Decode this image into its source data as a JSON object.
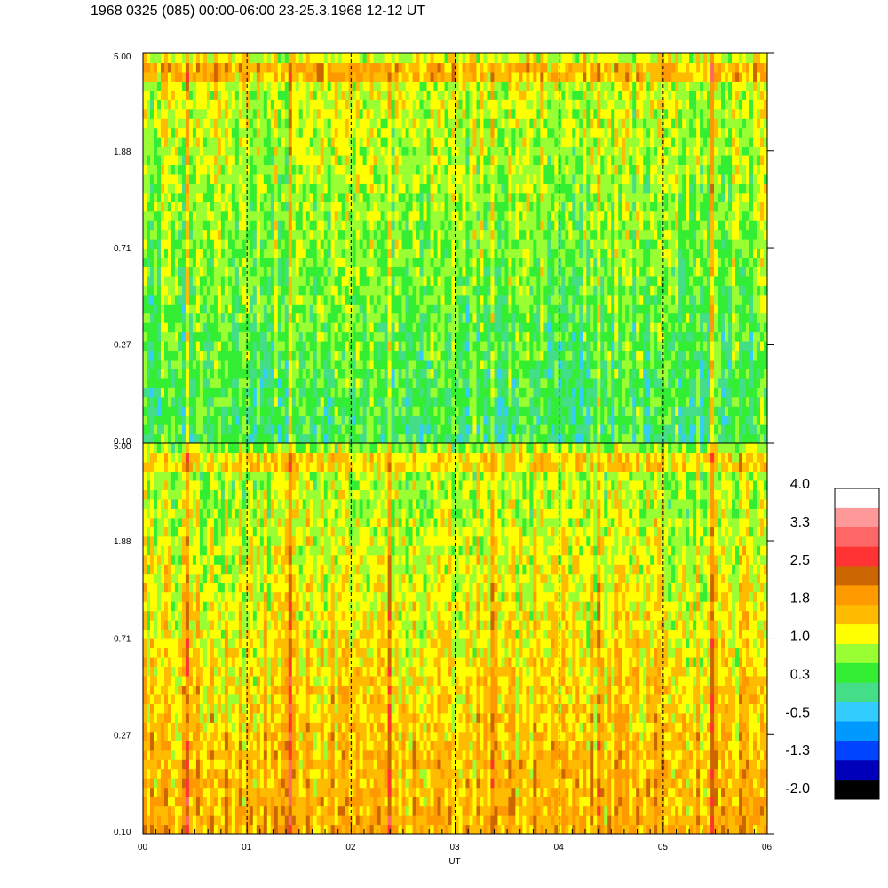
{
  "title": "1968 0325 (085) 00:00-06:00 23-25.3.1968  12-12 UT",
  "chart_data": {
    "type": "heatmap",
    "xlabel": "UT",
    "x_ticks": [
      "00",
      "01",
      "02",
      "03",
      "04",
      "05",
      "06"
    ],
    "xlim": [
      0,
      6
    ],
    "x_minor_per_major": 8,
    "y_scale": "log",
    "ylim": [
      0.1,
      5.0
    ],
    "y_ticks": [
      "0.10",
      "0.27",
      "0.71",
      "1.88",
      "5.00"
    ],
    "dashed_vertical_gridlines_at": [
      1,
      2,
      3,
      4,
      5
    ],
    "panels": [
      {
        "name": "upper",
        "mean_level_low_y": 0.25,
        "mean_level_high_y": 1.1,
        "bright_band_near_y": 4.3,
        "event_streaks_x": [
          0.43,
          1.42,
          2.38,
          3.37,
          4.38,
          5.48
        ]
      },
      {
        "name": "lower",
        "mean_level_low_y": 1.8,
        "mean_level_high_y": 0.8,
        "bright_band_near_y": 4.3,
        "event_streaks_x": [
          0.43,
          1.42,
          2.38,
          3.37,
          4.38,
          5.48
        ]
      }
    ],
    "colorbar": {
      "labels": [
        "4.0",
        "3.3",
        "2.5",
        "1.8",
        "1.0",
        "0.3",
        "-0.5",
        "-1.3",
        "-2.0"
      ],
      "colors_top_to_bottom": [
        "#ffffff",
        "#ff9999",
        "#ff6666",
        "#ff3333",
        "#cc6600",
        "#ff9900",
        "#ffbb00",
        "#ffff00",
        "#99ff33",
        "#33ee33",
        "#44dd88",
        "#33ccff",
        "#0099ff",
        "#0044ff",
        "#0000bb",
        "#000000"
      ]
    }
  }
}
